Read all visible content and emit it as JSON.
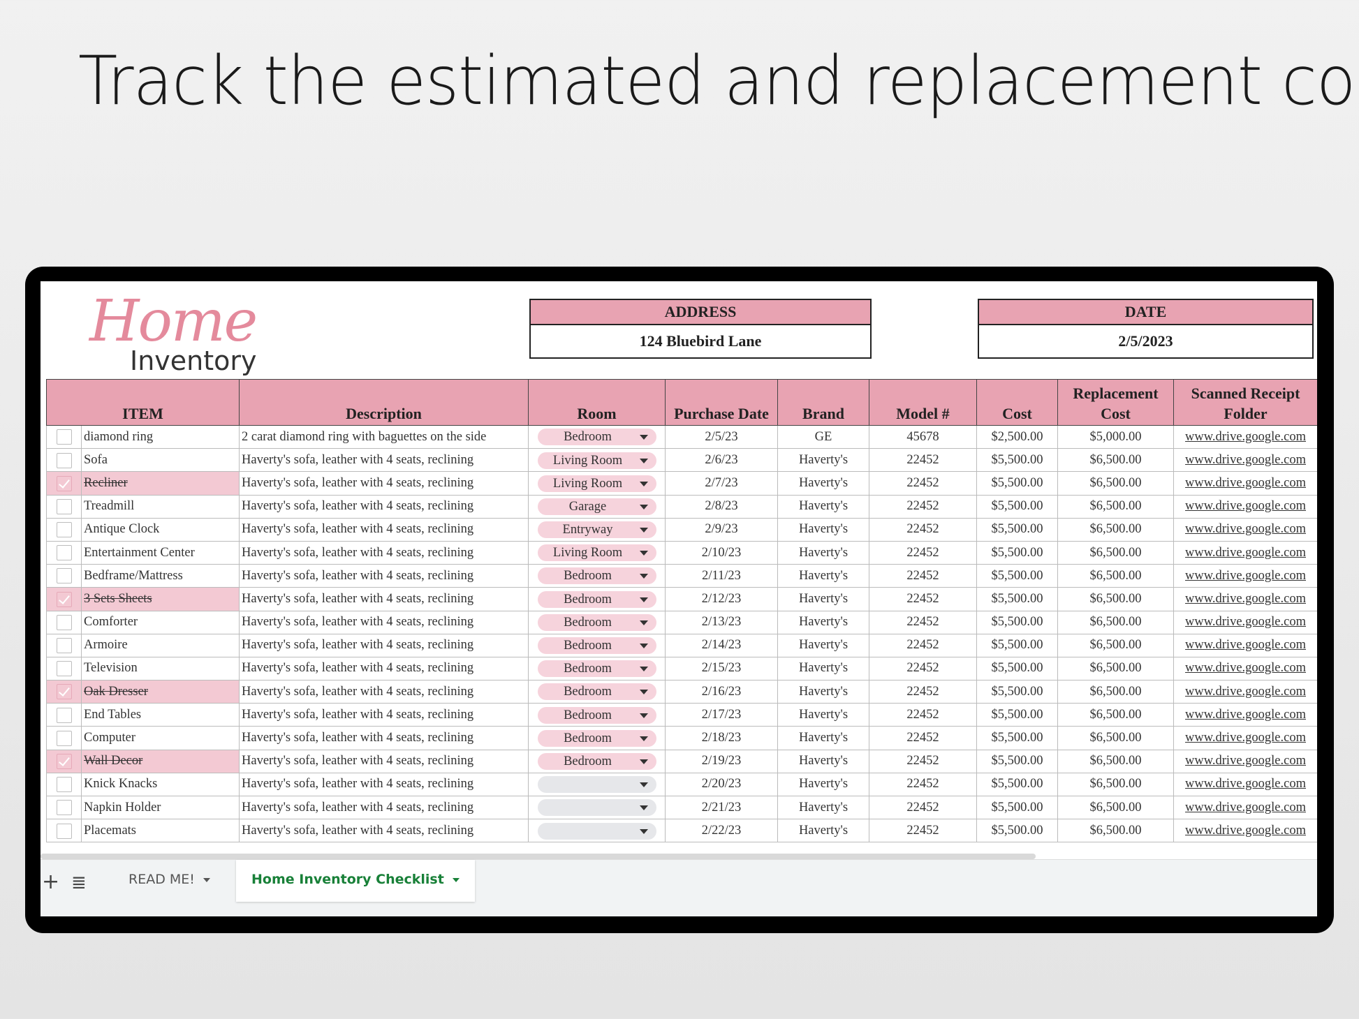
{
  "headline": "Track the estimated and replacement cost",
  "logo": {
    "script": "Home",
    "word": "Inventory"
  },
  "address": {
    "label": "ADDRESS",
    "value": "124 Bluebird Lane"
  },
  "date": {
    "label": "DATE",
    "value": "2/5/2023"
  },
  "columns": [
    "ITEM",
    "Description",
    "Room",
    "Purchase Date",
    "Brand",
    "Model #",
    "Cost",
    "Replacement Cost",
    "Scanned Receipt Folder"
  ],
  "rows": [
    {
      "checked": false,
      "item": "diamond ring",
      "desc": "2 carat diamond ring with baguettes on the side",
      "room": "Bedroom",
      "date": "2/5/23",
      "brand": "GE",
      "model": "45678",
      "cost": "$2,500.00",
      "repl": "$5,000.00",
      "link": "www.drive.google.com"
    },
    {
      "checked": false,
      "item": "Sofa",
      "desc": "Haverty's sofa, leather with 4 seats, reclining",
      "room": "Living Room",
      "date": "2/6/23",
      "brand": "Haverty's",
      "model": "22452",
      "cost": "$5,500.00",
      "repl": "$6,500.00",
      "link": "www.drive.google.com"
    },
    {
      "checked": true,
      "item": "Recliner",
      "desc": "Haverty's sofa, leather with 4 seats, reclining",
      "room": "Living Room",
      "date": "2/7/23",
      "brand": "Haverty's",
      "model": "22452",
      "cost": "$5,500.00",
      "repl": "$6,500.00",
      "link": "www.drive.google.com"
    },
    {
      "checked": false,
      "item": "Treadmill",
      "desc": "Haverty's sofa, leather with 4 seats, reclining",
      "room": "Garage",
      "date": "2/8/23",
      "brand": "Haverty's",
      "model": "22452",
      "cost": "$5,500.00",
      "repl": "$6,500.00",
      "link": "www.drive.google.com"
    },
    {
      "checked": false,
      "item": "Antique Clock",
      "desc": "Haverty's sofa, leather with 4 seats, reclining",
      "room": "Entryway",
      "date": "2/9/23",
      "brand": "Haverty's",
      "model": "22452",
      "cost": "$5,500.00",
      "repl": "$6,500.00",
      "link": "www.drive.google.com"
    },
    {
      "checked": false,
      "item": "Entertainment Center",
      "desc": "Haverty's sofa, leather with 4 seats, reclining",
      "room": "Living Room",
      "date": "2/10/23",
      "brand": "Haverty's",
      "model": "22452",
      "cost": "$5,500.00",
      "repl": "$6,500.00",
      "link": "www.drive.google.com"
    },
    {
      "checked": false,
      "item": "Bedframe/Mattress",
      "desc": "Haverty's sofa, leather with 4 seats, reclining",
      "room": "Bedroom",
      "date": "2/11/23",
      "brand": "Haverty's",
      "model": "22452",
      "cost": "$5,500.00",
      "repl": "$6,500.00",
      "link": "www.drive.google.com"
    },
    {
      "checked": true,
      "item": "3 Sets Sheets",
      "desc": "Haverty's sofa, leather with 4 seats, reclining",
      "room": "Bedroom",
      "date": "2/12/23",
      "brand": "Haverty's",
      "model": "22452",
      "cost": "$5,500.00",
      "repl": "$6,500.00",
      "link": "www.drive.google.com"
    },
    {
      "checked": false,
      "item": "Comforter",
      "desc": "Haverty's sofa, leather with 4 seats, reclining",
      "room": "Bedroom",
      "date": "2/13/23",
      "brand": "Haverty's",
      "model": "22452",
      "cost": "$5,500.00",
      "repl": "$6,500.00",
      "link": "www.drive.google.com"
    },
    {
      "checked": false,
      "item": "Armoire",
      "desc": "Haverty's sofa, leather with 4 seats, reclining",
      "room": "Bedroom",
      "date": "2/14/23",
      "brand": "Haverty's",
      "model": "22452",
      "cost": "$5,500.00",
      "repl": "$6,500.00",
      "link": "www.drive.google.com"
    },
    {
      "checked": false,
      "item": "Television",
      "desc": "Haverty's sofa, leather with 4 seats, reclining",
      "room": "Bedroom",
      "date": "2/15/23",
      "brand": "Haverty's",
      "model": "22452",
      "cost": "$5,500.00",
      "repl": "$6,500.00",
      "link": "www.drive.google.com"
    },
    {
      "checked": true,
      "item": "Oak Dresser",
      "desc": "Haverty's sofa, leather with 4 seats, reclining",
      "room": "Bedroom",
      "date": "2/16/23",
      "brand": "Haverty's",
      "model": "22452",
      "cost": "$5,500.00",
      "repl": "$6,500.00",
      "link": "www.drive.google.com"
    },
    {
      "checked": false,
      "item": "End Tables",
      "desc": "Haverty's sofa, leather with 4 seats, reclining",
      "room": "Bedroom",
      "date": "2/17/23",
      "brand": "Haverty's",
      "model": "22452",
      "cost": "$5,500.00",
      "repl": "$6,500.00",
      "link": "www.drive.google.com"
    },
    {
      "checked": false,
      "item": "Computer",
      "desc": "Haverty's sofa, leather with 4 seats, reclining",
      "room": "Bedroom",
      "date": "2/18/23",
      "brand": "Haverty's",
      "model": "22452",
      "cost": "$5,500.00",
      "repl": "$6,500.00",
      "link": "www.drive.google.com"
    },
    {
      "checked": true,
      "item": "Wall Decor",
      "desc": "Haverty's sofa, leather with 4 seats, reclining",
      "room": "Bedroom",
      "date": "2/19/23",
      "brand": "Haverty's",
      "model": "22452",
      "cost": "$5,500.00",
      "repl": "$6,500.00",
      "link": "www.drive.google.com"
    },
    {
      "checked": false,
      "item": "Knick Knacks",
      "desc": "Haverty's sofa, leather with 4 seats, reclining",
      "room": "",
      "date": "2/20/23",
      "brand": "Haverty's",
      "model": "22452",
      "cost": "$5,500.00",
      "repl": "$6,500.00",
      "link": "www.drive.google.com"
    },
    {
      "checked": false,
      "item": "Napkin Holder",
      "desc": "Haverty's sofa, leather with 4 seats, reclining",
      "room": "",
      "date": "2/21/23",
      "brand": "Haverty's",
      "model": "22452",
      "cost": "$5,500.00",
      "repl": "$6,500.00",
      "link": "www.drive.google.com"
    },
    {
      "checked": false,
      "item": "Placemats",
      "desc": "Haverty's sofa, leather with 4 seats, reclining",
      "room": "",
      "date": "2/22/23",
      "brand": "Haverty's",
      "model": "22452",
      "cost": "$5,500.00",
      "repl": "$6,500.00",
      "link": "www.drive.google.com"
    }
  ],
  "tabs": {
    "add": "+",
    "menu": "≣",
    "readme": "READ ME!",
    "active": "Home Inventory Checklist"
  },
  "colors": {
    "header_pink": "#e8a3b2",
    "done_pink": "#f3c9d3",
    "chip_pink": "#f6d3dc",
    "link_blue": "#1a56c8",
    "active_tab_green": "#188038"
  }
}
